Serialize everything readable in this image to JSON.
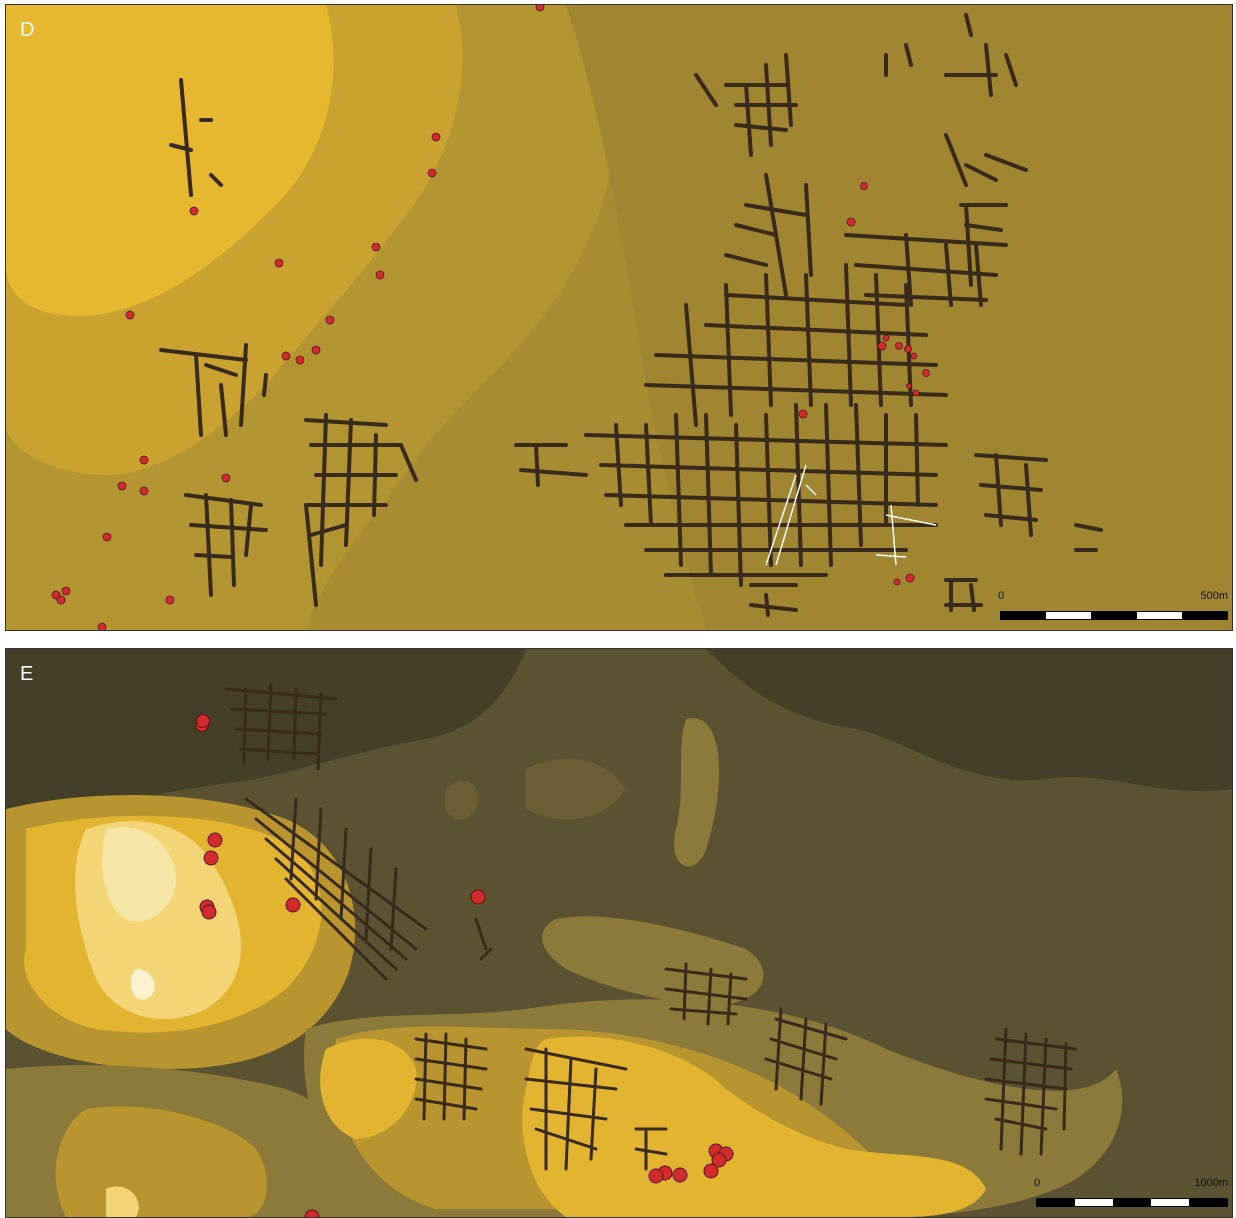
{
  "panels": [
    {
      "id": "D",
      "label": "D",
      "scale": {
        "start": "0",
        "end": "500m",
        "segments": 5
      },
      "colors": {
        "base": "#ab8f33",
        "mid": "#c59f30",
        "high": "#e8ba2f",
        "street": "#3a2a1a",
        "site": "#d12b2b"
      }
    },
    {
      "id": "E",
      "label": "E",
      "scale": {
        "start": "0",
        "end": "1000m",
        "segments": 5
      },
      "colors": {
        "base": "#5a5030",
        "dark": "#443f27",
        "mid": "#8c7a3a",
        "high": "#e8ba2f",
        "peak": "#f6e6a6",
        "street": "#3a2a1a",
        "site": "#d12b2b"
      }
    }
  ]
}
